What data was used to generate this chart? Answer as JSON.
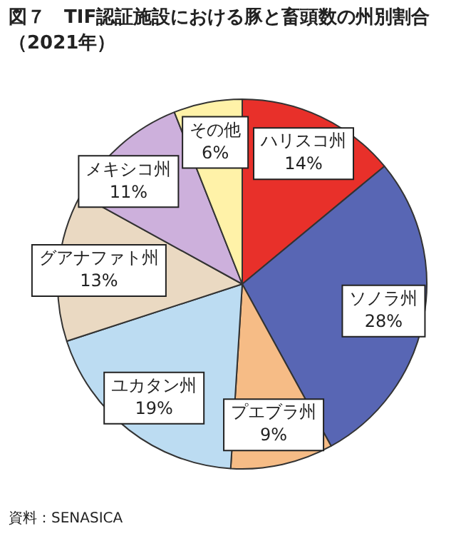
{
  "chart_data": {
    "type": "pie",
    "title": "図７　TIF認証施設における豚と畜頭数の州別割合（2021年）",
    "categories": [
      "ハリスコ州",
      "ソノラ州",
      "プエブラ州",
      "ユカタン州",
      "グアナファト州",
      "メキシコ州",
      "その他"
    ],
    "values": [
      14,
      28,
      9,
      19,
      13,
      11,
      6
    ],
    "value_labels": [
      "14%",
      "28%",
      "9%",
      "19%",
      "13%",
      "11%",
      "6%"
    ],
    "colors": [
      "#e8302a",
      "#5866b4",
      "#f6bc86",
      "#bcdcf2",
      "#ead9c2",
      "#cdb0dc",
      "#fff2a8"
    ],
    "legend": false,
    "annotations": [
      "資料：SENASICA"
    ]
  }
}
